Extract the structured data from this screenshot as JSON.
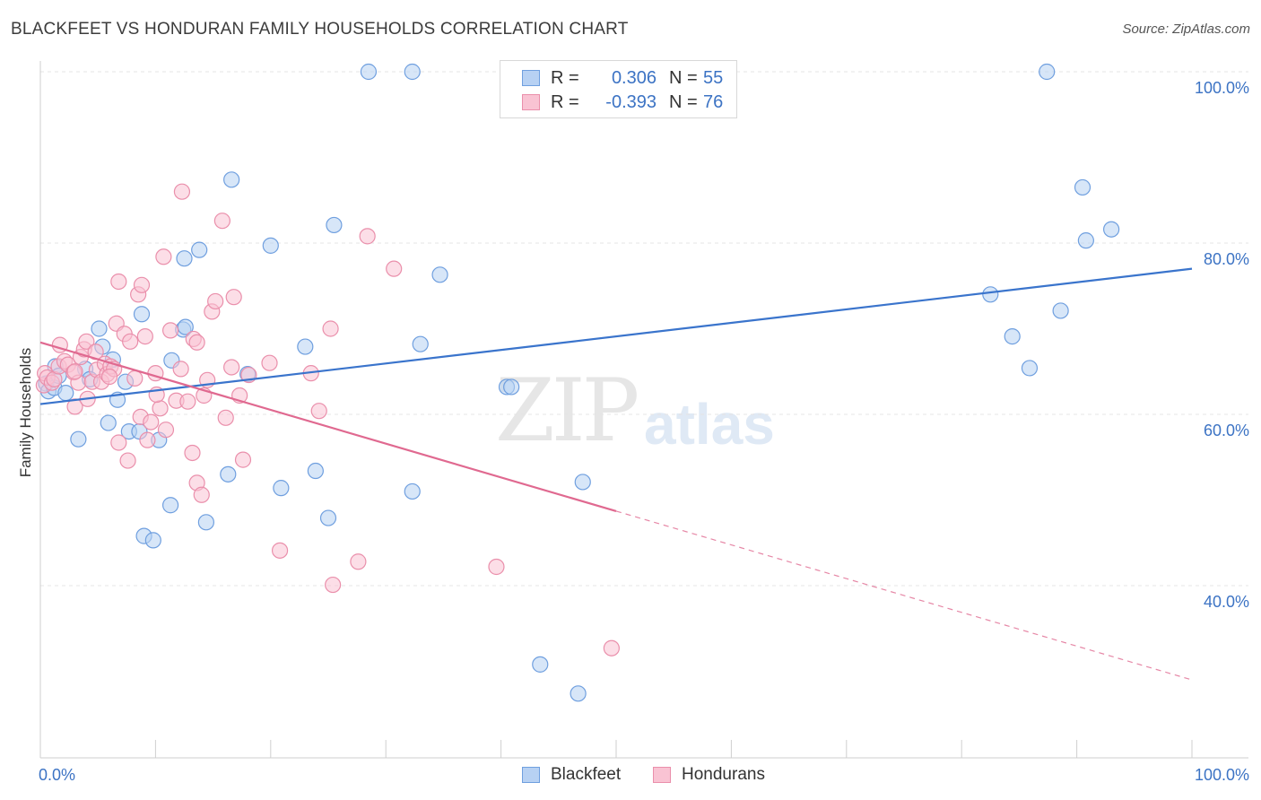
{
  "header": {
    "title": "BLACKFEET VS HONDURAN FAMILY HOUSEHOLDS CORRELATION CHART",
    "source": "Source: ZipAtlas.com"
  },
  "watermark": {
    "zip": "ZIP",
    "atlas": "atlas"
  },
  "legend": {
    "r_label": "R =",
    "n_label": "N =",
    "rows": [
      {
        "r": "0.306",
        "n": "55"
      },
      {
        "r": "-0.393",
        "n": "76"
      }
    ]
  },
  "colors": {
    "blackfeet_fill": "#b7d1f3",
    "blackfeet_stroke": "#6f9fdf",
    "blackfeet_line": "#3a74cc",
    "hondurans_fill": "#f9c3d3",
    "hondurans_stroke": "#ea8fab",
    "hondurans_line": "#e06990",
    "grid": "#e4e4e4",
    "tick_text": "#3c73c4"
  },
  "chart_data": {
    "type": "scatter",
    "title": "BLACKFEET VS HONDURAN FAMILY HOUSEHOLDS CORRELATION CHART",
    "xlabel": "",
    "ylabel": "Family Households",
    "xlim": [
      0,
      100
    ],
    "ylim": [
      20,
      102
    ],
    "x_tick_labels": [
      "0.0%",
      "100.0%"
    ],
    "y_ticks": [
      40,
      60,
      80,
      100
    ],
    "y_tick_labels": [
      "40.0%",
      "60.0%",
      "80.0%",
      "100.0%"
    ],
    "grid": true,
    "legend_position": "top-center",
    "series": [
      {
        "name": "Blackfeet",
        "R": 0.306,
        "N": 55,
        "trend": {
          "x0": 0,
          "y0": 61.2,
          "x1": 100,
          "y1": 77.0,
          "dashed_from": null
        },
        "points": [
          [
            0.5,
            63.6
          ],
          [
            0.7,
            62.7
          ],
          [
            1.2,
            63.1
          ],
          [
            1.3,
            65.6
          ],
          [
            1.6,
            64.5
          ],
          [
            2.2,
            62.5
          ],
          [
            3.3,
            57.1
          ],
          [
            3.9,
            65.3
          ],
          [
            4.3,
            64.1
          ],
          [
            5.1,
            70.0
          ],
          [
            5.4,
            67.9
          ],
          [
            5.9,
            59.0
          ],
          [
            6.3,
            66.4
          ],
          [
            6.7,
            61.7
          ],
          [
            7.4,
            63.8
          ],
          [
            7.7,
            58.0
          ],
          [
            8.6,
            58.0
          ],
          [
            8.8,
            71.7
          ],
          [
            9.0,
            45.8
          ],
          [
            9.8,
            45.3
          ],
          [
            10.3,
            57.0
          ],
          [
            11.4,
            66.3
          ],
          [
            11.3,
            49.4
          ],
          [
            12.4,
            69.9
          ],
          [
            12.6,
            70.2
          ],
          [
            12.5,
            78.2
          ],
          [
            13.8,
            79.2
          ],
          [
            14.4,
            47.4
          ],
          [
            16.3,
            53.0
          ],
          [
            16.6,
            87.4
          ],
          [
            18.0,
            64.7
          ],
          [
            20.0,
            79.7
          ],
          [
            20.9,
            51.4
          ],
          [
            23.0,
            67.9
          ],
          [
            23.9,
            53.4
          ],
          [
            25.0,
            47.9
          ],
          [
            25.5,
            82.1
          ],
          [
            28.5,
            100.0
          ],
          [
            32.3,
            100.0
          ],
          [
            32.3,
            51.0
          ],
          [
            33.0,
            68.2
          ],
          [
            34.7,
            76.3
          ],
          [
            40.5,
            63.2
          ],
          [
            40.9,
            63.2
          ],
          [
            43.4,
            30.8
          ],
          [
            46.7,
            27.4
          ],
          [
            47.1,
            52.1
          ],
          [
            82.5,
            74.0
          ],
          [
            84.4,
            69.1
          ],
          [
            85.9,
            65.4
          ],
          [
            87.4,
            100.0
          ],
          [
            88.6,
            72.1
          ],
          [
            90.5,
            86.5
          ],
          [
            90.8,
            80.3
          ],
          [
            93.0,
            81.6
          ]
        ]
      },
      {
        "name": "Hondurans",
        "R": -0.393,
        "N": 76,
        "trend": {
          "x0": 0,
          "y0": 68.4,
          "x1": 100,
          "y1": 29.0,
          "dashed_from": 50
        },
        "points": [
          [
            0.3,
            63.4
          ],
          [
            0.4,
            64.8
          ],
          [
            0.6,
            64.3
          ],
          [
            1.0,
            63.7
          ],
          [
            1.2,
            64.1
          ],
          [
            1.6,
            65.6
          ],
          [
            1.7,
            68.1
          ],
          [
            2.1,
            66.2
          ],
          [
            2.4,
            65.8
          ],
          [
            2.9,
            64.9
          ],
          [
            3.0,
            60.9
          ],
          [
            3.3,
            63.7
          ],
          [
            3.5,
            66.7
          ],
          [
            3.8,
            67.6
          ],
          [
            4.0,
            68.5
          ],
          [
            4.1,
            61.8
          ],
          [
            4.5,
            63.8
          ],
          [
            4.8,
            67.3
          ],
          [
            4.9,
            65.2
          ],
          [
            5.3,
            63.8
          ],
          [
            5.6,
            65.9
          ],
          [
            5.8,
            64.7
          ],
          [
            6.1,
            65.6
          ],
          [
            6.4,
            65.3
          ],
          [
            6.6,
            70.6
          ],
          [
            6.8,
            75.5
          ],
          [
            6.8,
            56.7
          ],
          [
            7.3,
            69.4
          ],
          [
            7.6,
            54.6
          ],
          [
            7.8,
            68.5
          ],
          [
            8.2,
            64.2
          ],
          [
            8.5,
            74.0
          ],
          [
            8.7,
            59.7
          ],
          [
            8.8,
            75.1
          ],
          [
            9.1,
            69.1
          ],
          [
            9.3,
            57.0
          ],
          [
            9.6,
            59.1
          ],
          [
            10.0,
            64.8
          ],
          [
            10.4,
            60.7
          ],
          [
            10.7,
            78.4
          ],
          [
            10.9,
            58.2
          ],
          [
            11.3,
            69.8
          ],
          [
            11.8,
            61.6
          ],
          [
            12.2,
            65.3
          ],
          [
            12.3,
            86.0
          ],
          [
            12.8,
            61.5
          ],
          [
            13.3,
            68.8
          ],
          [
            13.6,
            68.4
          ],
          [
            13.2,
            55.5
          ],
          [
            13.6,
            52.0
          ],
          [
            14.0,
            50.6
          ],
          [
            14.2,
            62.2
          ],
          [
            14.5,
            64.0
          ],
          [
            14.9,
            72.0
          ],
          [
            15.2,
            73.2
          ],
          [
            15.8,
            82.6
          ],
          [
            16.1,
            59.6
          ],
          [
            16.6,
            65.5
          ],
          [
            16.8,
            73.7
          ],
          [
            17.3,
            62.2
          ],
          [
            17.6,
            54.7
          ],
          [
            18.1,
            64.6
          ],
          [
            19.9,
            66.0
          ],
          [
            20.8,
            44.1
          ],
          [
            23.5,
            64.8
          ],
          [
            24.2,
            60.4
          ],
          [
            25.2,
            70.0
          ],
          [
            25.4,
            40.1
          ],
          [
            27.6,
            42.8
          ],
          [
            28.4,
            80.8
          ],
          [
            30.7,
            77.0
          ],
          [
            39.6,
            42.2
          ],
          [
            49.6,
            32.7
          ],
          [
            6.0,
            64.4
          ],
          [
            3.0,
            65.0
          ],
          [
            10.1,
            62.3
          ]
        ]
      }
    ]
  },
  "bottom_legend": [
    "Blackfeet",
    "Hondurans"
  ]
}
